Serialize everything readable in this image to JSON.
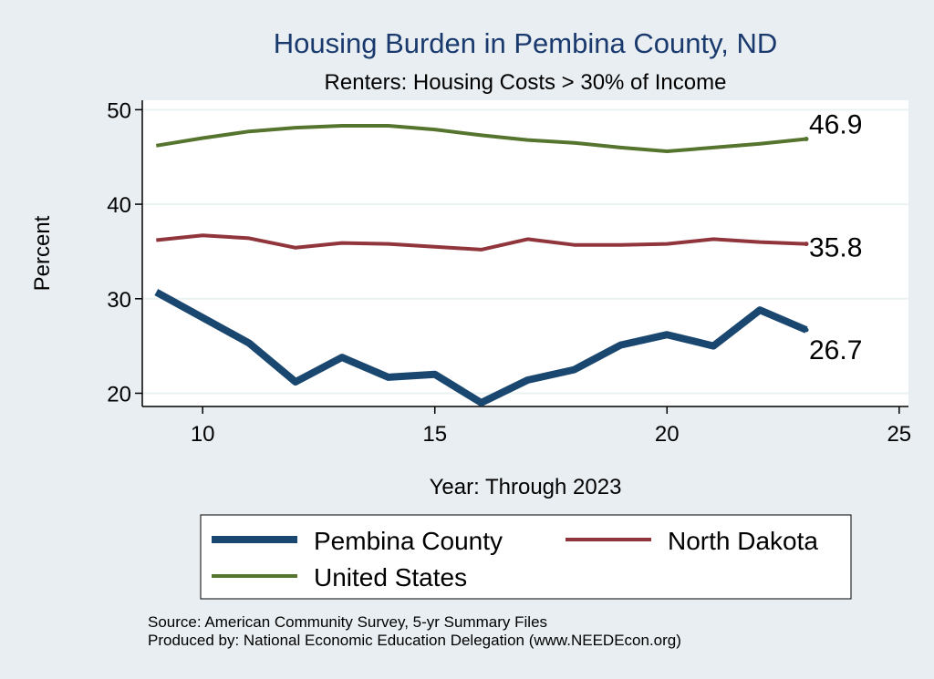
{
  "chart_data": {
    "type": "line",
    "title": "Housing Burden in Pembina County, ND",
    "subtitle": "Renters: Housing Costs > 30% of Income",
    "xlabel": "Year: Through 2023",
    "ylabel": "Percent",
    "xlim": [
      8.7,
      25.2
    ],
    "ylim": [
      18.6,
      51.0
    ],
    "xticks": [
      10,
      15,
      20,
      25
    ],
    "yticks": [
      20,
      30,
      40,
      50
    ],
    "x": [
      9,
      10,
      11,
      12,
      13,
      14,
      15,
      16,
      17,
      18,
      19,
      20,
      21,
      22,
      23
    ],
    "series": [
      {
        "name": "Pembina County",
        "color": "#1a476f",
        "values": [
          30.7,
          28.0,
          25.3,
          21.2,
          23.8,
          21.7,
          22.0,
          19.0,
          21.4,
          22.5,
          25.1,
          26.2,
          25.0,
          28.8,
          26.7
        ],
        "end_label": "26.7"
      },
      {
        "name": "North Dakota",
        "color": "#90353b",
        "values": [
          36.2,
          36.7,
          36.4,
          35.4,
          35.9,
          35.8,
          35.5,
          35.2,
          36.3,
          35.7,
          35.7,
          35.8,
          36.3,
          36.0,
          35.8
        ],
        "end_label": "35.8"
      },
      {
        "name": "United States",
        "color": "#55752f",
        "values": [
          46.2,
          47.0,
          47.7,
          48.1,
          48.3,
          48.3,
          47.9,
          47.3,
          46.8,
          46.5,
          46.0,
          45.6,
          46.0,
          46.4,
          46.9
        ],
        "end_label": "46.9"
      }
    ],
    "legend": {
      "entries": [
        "Pembina County",
        "North Dakota",
        "United States"
      ],
      "placement": "bottom"
    },
    "notes": [
      "Source: American Community Survey, 5-yr Summary Files",
      "Produced by: National Economic Education Delegation (www.NEEDEcon.org)"
    ]
  }
}
